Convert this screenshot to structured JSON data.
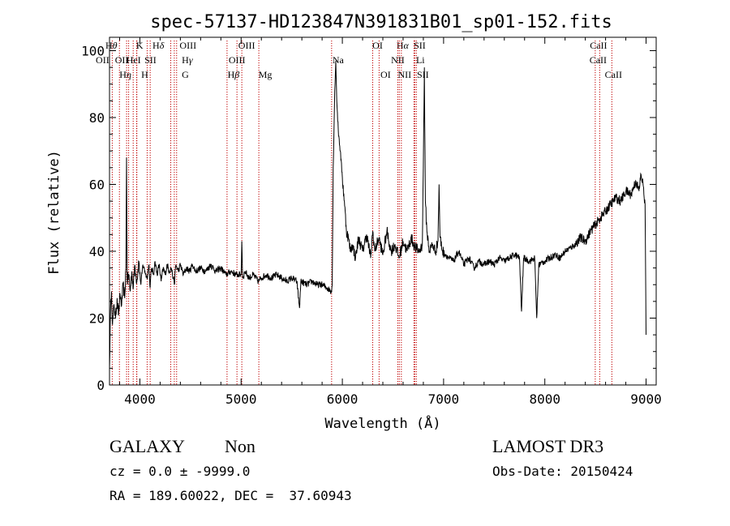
{
  "chart_data": {
    "type": "line",
    "title": "spec-57137-HD123847N391831B01_sp01-152.fits",
    "xlabel": "Wavelength (Å)",
    "ylabel": "Flux (relative)",
    "xlim": [
      3700,
      9100
    ],
    "ylim": [
      0,
      104
    ],
    "xticks": [
      4000,
      5000,
      6000,
      7000,
      8000,
      9000
    ],
    "yticks": [
      0,
      20,
      40,
      60,
      80,
      100
    ],
    "grid": false,
    "line_color": "#000000",
    "marker_color": "#c00000",
    "spectrum": [
      [
        3700,
        5
      ],
      [
        3710,
        22
      ],
      [
        3720,
        28
      ],
      [
        3730,
        18
      ],
      [
        3745,
        24
      ],
      [
        3760,
        20
      ],
      [
        3775,
        26
      ],
      [
        3790,
        21
      ],
      [
        3805,
        27
      ],
      [
        3820,
        24
      ],
      [
        3835,
        30
      ],
      [
        3850,
        26
      ],
      [
        3862,
        35
      ],
      [
        3868,
        68
      ],
      [
        3875,
        31
      ],
      [
        3890,
        33
      ],
      [
        3905,
        28
      ],
      [
        3920,
        34
      ],
      [
        3935,
        29
      ],
      [
        3950,
        36
      ],
      [
        3970,
        31
      ],
      [
        3990,
        37
      ],
      [
        4010,
        30
      ],
      [
        4030,
        36
      ],
      [
        4050,
        34
      ],
      [
        4070,
        32
      ],
      [
        4090,
        36
      ],
      [
        4101,
        29
      ],
      [
        4115,
        35
      ],
      [
        4135,
        33
      ],
      [
        4150,
        37
      ],
      [
        4170,
        33
      ],
      [
        4190,
        36
      ],
      [
        4210,
        31
      ],
      [
        4230,
        35
      ],
      [
        4250,
        33
      ],
      [
        4270,
        36
      ],
      [
        4290,
        34
      ],
      [
        4310,
        35
      ],
      [
        4330,
        32
      ],
      [
        4340,
        30
      ],
      [
        4355,
        36
      ],
      [
        4380,
        34
      ],
      [
        4400,
        36
      ],
      [
        4430,
        33
      ],
      [
        4460,
        35
      ],
      [
        4490,
        34
      ],
      [
        4520,
        36
      ],
      [
        4550,
        34
      ],
      [
        4600,
        35
      ],
      [
        4650,
        34
      ],
      [
        4700,
        36
      ],
      [
        4750,
        34
      ],
      [
        4800,
        35
      ],
      [
        4850,
        33
      ],
      [
        4900,
        34
      ],
      [
        4950,
        33
      ],
      [
        5000,
        33
      ],
      [
        5007,
        43
      ],
      [
        5015,
        32
      ],
      [
        5040,
        34
      ],
      [
        5080,
        32
      ],
      [
        5120,
        33
      ],
      [
        5170,
        31
      ],
      [
        5200,
        32
      ],
      [
        5250,
        33
      ],
      [
        5300,
        32
      ],
      [
        5350,
        33
      ],
      [
        5400,
        32
      ],
      [
        5450,
        31
      ],
      [
        5500,
        32
      ],
      [
        5550,
        31
      ],
      [
        5577,
        23
      ],
      [
        5590,
        31
      ],
      [
        5650,
        30
      ],
      [
        5700,
        31
      ],
      [
        5750,
        30
      ],
      [
        5800,
        30
      ],
      [
        5850,
        29
      ],
      [
        5890,
        28
      ],
      [
        5900,
        30
      ],
      [
        5910,
        65
      ],
      [
        5925,
        88
      ],
      [
        5935,
        97
      ],
      [
        5945,
        85
      ],
      [
        5960,
        76
      ],
      [
        5980,
        70
      ],
      [
        6000,
        62
      ],
      [
        6020,
        55
      ],
      [
        6040,
        46
      ],
      [
        6060,
        44
      ],
      [
        6080,
        40
      ],
      [
        6100,
        42
      ],
      [
        6130,
        38
      ],
      [
        6160,
        44
      ],
      [
        6200,
        40
      ],
      [
        6240,
        45
      ],
      [
        6280,
        38
      ],
      [
        6300,
        46
      ],
      [
        6320,
        40
      ],
      [
        6360,
        44
      ],
      [
        6400,
        39
      ],
      [
        6440,
        46
      ],
      [
        6480,
        40
      ],
      [
        6520,
        42
      ],
      [
        6560,
        38
      ],
      [
        6600,
        43
      ],
      [
        6640,
        40
      ],
      [
        6680,
        44
      ],
      [
        6720,
        41
      ],
      [
        6760,
        40
      ],
      [
        6790,
        42
      ],
      [
        6800,
        65
      ],
      [
        6810,
        95
      ],
      [
        6820,
        55
      ],
      [
        6835,
        46
      ],
      [
        6860,
        40
      ],
      [
        6890,
        42
      ],
      [
        6920,
        40
      ],
      [
        6945,
        43
      ],
      [
        6955,
        60
      ],
      [
        6965,
        44
      ],
      [
        6990,
        40
      ],
      [
        7050,
        38
      ],
      [
        7100,
        37
      ],
      [
        7150,
        40
      ],
      [
        7200,
        36
      ],
      [
        7250,
        38
      ],
      [
        7300,
        35
      ],
      [
        7350,
        37
      ],
      [
        7400,
        36
      ],
      [
        7450,
        37
      ],
      [
        7500,
        36
      ],
      [
        7550,
        38
      ],
      [
        7600,
        37
      ],
      [
        7650,
        38
      ],
      [
        7700,
        39
      ],
      [
        7750,
        38
      ],
      [
        7770,
        22
      ],
      [
        7790,
        38
      ],
      [
        7850,
        37
      ],
      [
        7900,
        38
      ],
      [
        7920,
        20
      ],
      [
        7940,
        36
      ],
      [
        8000,
        37
      ],
      [
        8050,
        38
      ],
      [
        8100,
        39
      ],
      [
        8150,
        38
      ],
      [
        8200,
        40
      ],
      [
        8250,
        41
      ],
      [
        8300,
        42
      ],
      [
        8350,
        44
      ],
      [
        8400,
        43
      ],
      [
        8450,
        46
      ],
      [
        8500,
        48
      ],
      [
        8550,
        50
      ],
      [
        8600,
        52
      ],
      [
        8650,
        54
      ],
      [
        8700,
        56
      ],
      [
        8750,
        55
      ],
      [
        8800,
        58
      ],
      [
        8850,
        57
      ],
      [
        8900,
        61
      ],
      [
        8930,
        58
      ],
      [
        8950,
        63
      ],
      [
        8970,
        60
      ],
      [
        8990,
        54
      ],
      [
        9000,
        15
      ]
    ],
    "lines": [
      {
        "label": "OII",
        "x": 3727,
        "row": 1,
        "dx": -12,
        "html": "OII"
      },
      {
        "label": "Hθ",
        "x": 3798,
        "row": 0,
        "dx": -10,
        "html": "H<tspan font-style=\"italic\">θ</tspan>"
      },
      {
        "label": "OII",
        "x": 3869,
        "row": 1,
        "dx": -6,
        "html": "OII"
      },
      {
        "label": "Hη",
        "x": 3889,
        "row": 2,
        "dx": -4,
        "html": "H<tspan font-style=\"italic\">η</tspan>"
      },
      {
        "label": "HeI",
        "x": 3970,
        "row": 1,
        "dx": -4,
        "html": "HeI"
      },
      {
        "label": "K",
        "x": 3934,
        "row": 0,
        "dx": 8,
        "html": "K"
      },
      {
        "label": "SII",
        "x": 4072,
        "row": 1,
        "dx": 4,
        "html": "SII"
      },
      {
        "label": "H",
        "x": 3968,
        "row": 2,
        "dx": 10,
        "html": "H"
      },
      {
        "label": "Hδ",
        "x": 4102,
        "row": 0,
        "dx": 10,
        "html": "H<tspan font-style=\"italic\">δ</tspan>"
      },
      {
        "label": "OIII",
        "x": 4363,
        "row": 0,
        "dx": 14,
        "html": "OIII"
      },
      {
        "label": "Hγ",
        "x": 4340,
        "row": 1,
        "dx": 16,
        "html": "H<tspan font-style=\"italic\">γ</tspan>"
      },
      {
        "label": "G",
        "x": 4305,
        "row": 2,
        "dx": 18,
        "html": "G"
      },
      {
        "label": "Hβ",
        "x": 4861,
        "row": 2,
        "dx": 8,
        "html": "H<tspan font-style=\"italic\">β</tspan>"
      },
      {
        "label": "OIII",
        "x": 4959,
        "row": 1,
        "dx": 0,
        "html": "OIII"
      },
      {
        "label": "OIII",
        "x": 5007,
        "row": 0,
        "dx": 6,
        "html": "OIII"
      },
      {
        "label": "Mg",
        "x": 5175,
        "row": 2,
        "dx": 8,
        "html": "Mg"
      },
      {
        "label": "Na",
        "x": 5894,
        "row": 1,
        "dx": 8,
        "html": "Na"
      },
      {
        "label": "OI",
        "x": 6300,
        "row": 0,
        "dx": 6,
        "html": "OI"
      },
      {
        "label": "OI",
        "x": 6363,
        "row": 2,
        "dx": 8,
        "html": "OI"
      },
      {
        "label": "Hα",
        "x": 6563,
        "row": 0,
        "dx": 4,
        "html": "H<tspan font-style=\"italic\">α</tspan>"
      },
      {
        "label": "NII",
        "x": 6548,
        "row": 1,
        "dx": 0,
        "html": "NII"
      },
      {
        "label": "NII",
        "x": 6583,
        "row": 2,
        "dx": 4,
        "html": "NII"
      },
      {
        "label": "SII",
        "x": 6716,
        "row": 0,
        "dx": 6,
        "html": "SII"
      },
      {
        "label": "Li",
        "x": 6707,
        "row": 1,
        "dx": 8,
        "html": "Li"
      },
      {
        "label": "SII",
        "x": 6731,
        "row": 2,
        "dx": 8,
        "html": "SII"
      },
      {
        "label": "CaII",
        "x": 8498,
        "row": 0,
        "dx": 4,
        "html": "CaII"
      },
      {
        "label": "CaII",
        "x": 8542,
        "row": 1,
        "dx": -2,
        "html": "CaII"
      },
      {
        "label": "CaII",
        "x": 8662,
        "row": 2,
        "dx": 2,
        "html": "CaII"
      }
    ]
  },
  "info": {
    "class": "GALAXY",
    "subclass": "Non",
    "survey": "LAMOST DR3",
    "cz": "cz = 0.0 ± -9999.0",
    "obs_date": "Obs-Date: 20150424",
    "coords": "RA = 189.60022, DEC =  37.60943"
  }
}
